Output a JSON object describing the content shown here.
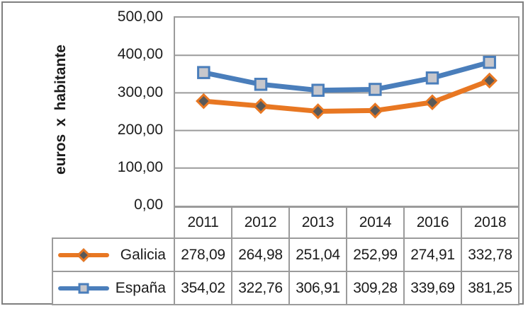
{
  "chart_data": {
    "type": "line",
    "title": "",
    "xlabel": "",
    "ylabel": "euros x habitante",
    "ylim": [
      0,
      500
    ],
    "ytick_step": 100,
    "yticks": [
      "500,00",
      "400,00",
      "300,00",
      "200,00",
      "100,00",
      "0,00"
    ],
    "categories": [
      "2011",
      "2012",
      "2013",
      "2014",
      "2016",
      "2018"
    ],
    "series": [
      {
        "name": "Galicia",
        "values": [
          278.09,
          264.98,
          251.04,
          252.99,
          274.91,
          332.78
        ],
        "display": [
          "278,09",
          "264,98",
          "251,04",
          "252,99",
          "274,91",
          "332,78"
        ],
        "color": "#e87722",
        "marker": "diamond",
        "marker_fill": "#595959"
      },
      {
        "name": "España",
        "values": [
          354.02,
          322.76,
          306.91,
          309.28,
          339.69,
          381.25
        ],
        "display": [
          "354,02",
          "322,76",
          "306,91",
          "309,28",
          "339,69",
          "381,25"
        ],
        "color": "#4a7ebb",
        "marker": "square",
        "marker_fill": "#c7c7cc"
      }
    ],
    "grid": true,
    "gridline_color": "#9b9b9b",
    "legend_position": "table-left"
  }
}
